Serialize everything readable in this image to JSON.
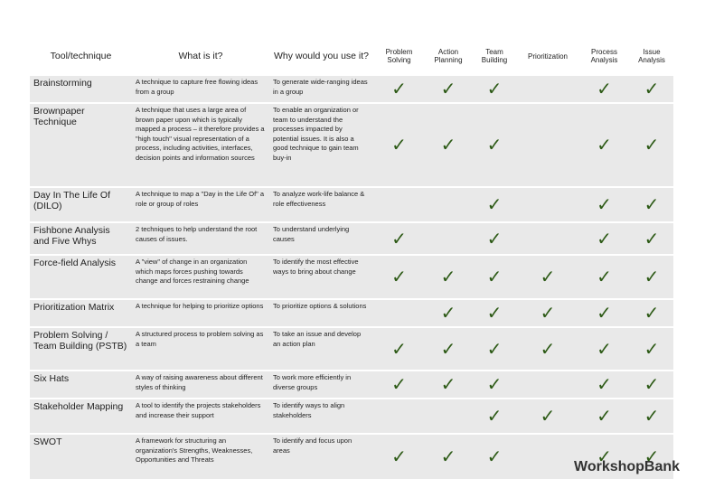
{
  "table": {
    "columns": [
      "Tool/technique",
      "What is it?",
      "Why would you use it?",
      "Problem Solving",
      "Action Planning",
      "Team Building",
      "Prioritization",
      "Process Analysis",
      "Issue Analysis"
    ],
    "rows": [
      {
        "tool": "Brainstorming",
        "what": "A technique to capture free flowing ideas from a group",
        "why": "To generate wide-ranging ideas in a group",
        "checks": [
          "✓",
          "✓",
          "✓",
          null,
          "✓",
          "✓"
        ]
      },
      {
        "tool": "Brownpaper Technique",
        "what": "A technique that uses a large area of brown paper upon which is typically mapped a process – it therefore provides a \"high touch\" visual representation of a process, including activities, interfaces, decision points and information sources",
        "why": "To enable an organization or team to understand the processes impacted by potential issues. It is also a good technique to gain team buy-in",
        "checks": [
          "✓",
          "✓",
          "✓",
          null,
          "✓",
          "✓"
        ]
      },
      {
        "tool": "Day In The Life Of (DILO)",
        "what": "A technique to map a \"Day in the Life Of\" a role or group of roles",
        "why": "To analyze work-life balance & role effectiveness",
        "checks": [
          null,
          null,
          "✓",
          null,
          "✓",
          "✓"
        ]
      },
      {
        "tool": "Fishbone Analysis and Five Whys",
        "what": "2 techniques to help understand the root causes of issues.",
        "why": "To understand underlying causes",
        "checks": [
          "✓",
          null,
          "✓",
          null,
          "✓",
          "✓"
        ]
      },
      {
        "tool": "Force-field Analysis",
        "what": "A \"view\" of change in an organization which maps forces pushing towards change and forces restraining change",
        "why": "To identify the most effective ways to bring about change",
        "checks": [
          "✓",
          "✓",
          "✓",
          "✓",
          "✓",
          "✓"
        ]
      },
      {
        "tool": "Prioritization Matrix",
        "what": "A technique for helping to prioritize options",
        "why": "To prioritize options & solutions",
        "checks": [
          null,
          "✓",
          "✓",
          "✓",
          "✓",
          "✓"
        ]
      },
      {
        "tool": "Problem Solving / Team Building (PSTB)",
        "what": "A structured process to problem solving as a team",
        "why": "To take an issue and develop an action plan",
        "checks": [
          "✓",
          "✓",
          "✓",
          "✓",
          "✓",
          "✓"
        ]
      },
      {
        "tool": "Six Hats",
        "what": "A way of raising awareness about different styles of thinking",
        "why": "To work more efficiently in diverse groups",
        "checks": [
          "✓",
          "✓",
          "✓",
          null,
          "✓",
          "✓"
        ]
      },
      {
        "tool": "Stakeholder Mapping",
        "what": "A tool to identify the projects stakeholders and increase their support",
        "why": "To identify ways to align stakeholders",
        "checks": [
          null,
          null,
          "✓",
          "✓",
          "✓",
          "✓"
        ]
      },
      {
        "tool": "SWOT",
        "what": "A framework for structuring an organization's Strengths, Weaknesses, Opportunities and Threats",
        "why": "To identify and focus upon areas",
        "checks": [
          "✓",
          "✓",
          "✓",
          null,
          "✓",
          "✓"
        ]
      }
    ]
  },
  "logo": "WorkshopBank"
}
